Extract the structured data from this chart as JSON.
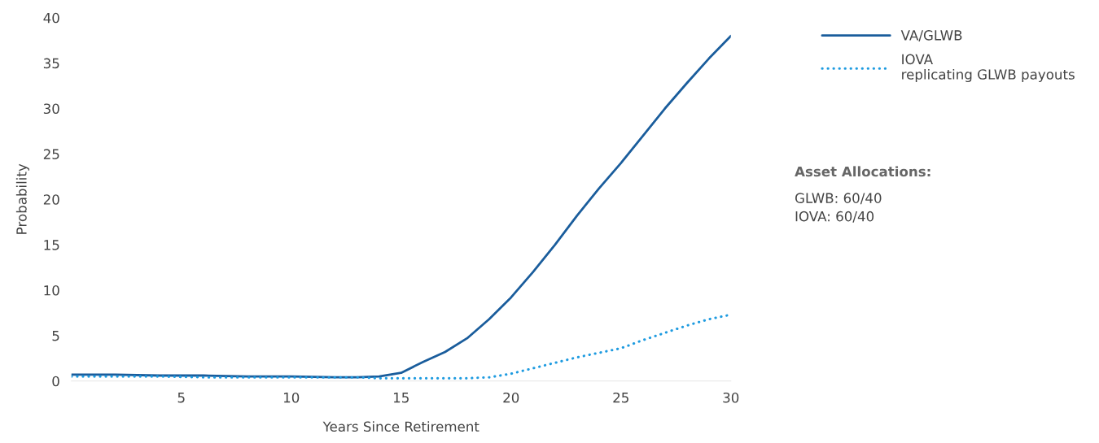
{
  "chart_data": {
    "type": "line",
    "xlabel": "Years Since Retirement",
    "ylabel": "Probability",
    "x": [
      0,
      2,
      4,
      6,
      8,
      10,
      12,
      13,
      14,
      15,
      16,
      17,
      18,
      19,
      20,
      21,
      22,
      23,
      24,
      25,
      26,
      27,
      28,
      29,
      30
    ],
    "series": [
      {
        "name": "VA/GLWB",
        "color": "#1a5d9c",
        "line_style": "solid",
        "values": [
          0.7,
          0.7,
          0.6,
          0.6,
          0.5,
          0.5,
          0.4,
          0.4,
          0.5,
          0.9,
          2.1,
          3.2,
          4.7,
          6.8,
          9.2,
          12,
          15,
          18.2,
          21.2,
          24,
          27,
          30,
          32.8,
          35.5,
          38
        ]
      },
      {
        "name": "IOVA\nreplicating GLWB payouts",
        "color": "#1e9be0",
        "line_style": "dotted",
        "values": [
          0.5,
          0.5,
          0.5,
          0.4,
          0.4,
          0.4,
          0.4,
          0.4,
          0.3,
          0.3,
          0.3,
          0.3,
          0.3,
          0.4,
          0.8,
          1.4,
          2,
          2.6,
          3.1,
          3.6,
          4.5,
          5.3,
          6.1,
          6.8,
          7.3
        ]
      }
    ],
    "xlim": [
      0,
      30
    ],
    "xticks": [
      5,
      10,
      15,
      20,
      25,
      30
    ],
    "ylim": [
      0,
      40
    ],
    "yticks": [
      0,
      5,
      10,
      15,
      20,
      25,
      30,
      35,
      40
    ],
    "grid": false,
    "legend": "top right",
    "annotations": [
      "Asset Allocations:",
      "GLWB: 60/40\nIOVA: 60/40"
    ]
  }
}
